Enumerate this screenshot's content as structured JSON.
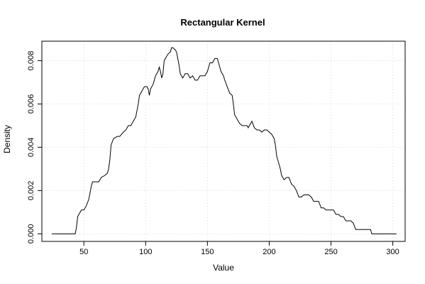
{
  "chart_data": {
    "type": "line",
    "title": "Rectangular Kernel",
    "xlabel": "Value",
    "ylabel": "Density",
    "xlim": [
      16,
      310
    ],
    "ylim": [
      -0.00035,
      0.0089
    ],
    "grid": true,
    "xticks": [
      {
        "value": 50,
        "label": "50"
      },
      {
        "value": 100,
        "label": "100"
      },
      {
        "value": 150,
        "label": "150"
      },
      {
        "value": 200,
        "label": "200"
      },
      {
        "value": 250,
        "label": "250"
      },
      {
        "value": 300,
        "label": "300"
      }
    ],
    "yticks": [
      {
        "value": 0,
        "label": "0.000"
      },
      {
        "value": 0.002,
        "label": "0.002"
      },
      {
        "value": 0.004,
        "label": "0.004"
      },
      {
        "value": 0.006,
        "label": "0.006"
      },
      {
        "value": 0.008,
        "label": "0.008"
      }
    ],
    "series": [
      {
        "x": [
          24,
          43,
          44,
          45,
          46,
          48,
          50,
          52,
          54,
          55,
          56,
          57,
          59,
          62,
          64,
          67,
          69,
          70,
          71,
          72,
          74,
          77,
          79,
          82,
          84,
          86,
          88,
          90,
          92,
          93,
          94,
          95,
          97,
          99,
          101,
          102,
          103,
          104,
          106,
          107,
          108,
          110,
          111,
          112,
          113,
          114,
          115,
          116,
          118,
          120,
          121,
          122,
          124,
          125,
          126,
          127,
          128,
          130,
          132,
          134,
          136,
          138,
          140,
          142,
          144,
          146,
          148,
          150,
          151,
          152,
          154,
          155,
          156,
          158,
          159,
          160,
          161,
          162,
          163,
          164,
          166,
          168,
          170,
          171,
          172,
          174,
          176,
          178,
          180,
          182,
          183,
          184,
          185,
          186,
          188,
          190,
          192,
          194,
          196,
          198,
          200,
          202,
          203,
          204,
          205,
          206,
          208,
          209,
          210,
          211,
          212,
          214,
          216,
          218,
          220,
          222,
          224,
          226,
          228,
          230,
          232,
          234,
          236,
          238,
          240,
          242,
          244,
          246,
          248,
          250,
          252,
          254,
          256,
          258,
          260,
          262,
          264,
          266,
          268,
          270,
          272,
          274,
          276,
          278,
          280,
          282,
          283,
          284,
          286,
          288,
          303
        ],
        "y": [
          0.0,
          0.0,
          0.0003,
          0.0008,
          0.0009,
          0.0011,
          0.0011,
          0.0013,
          0.0016,
          0.0019,
          0.0022,
          0.0024,
          0.0024,
          0.0024,
          0.0026,
          0.0027,
          0.0028,
          0.003,
          0.0034,
          0.0041,
          0.0044,
          0.0045,
          0.0045,
          0.0047,
          0.0048,
          0.005,
          0.005,
          0.0052,
          0.0054,
          0.0057,
          0.006,
          0.0064,
          0.0066,
          0.0068,
          0.0068,
          0.0067,
          0.0064,
          0.0067,
          0.0069,
          0.0071,
          0.0073,
          0.0075,
          0.0077,
          0.0075,
          0.0072,
          0.0074,
          0.008,
          0.0081,
          0.0083,
          0.0084,
          0.0086,
          0.0086,
          0.0085,
          0.0084,
          0.0081,
          0.0078,
          0.0074,
          0.0072,
          0.0074,
          0.0074,
          0.0072,
          0.0073,
          0.0071,
          0.0071,
          0.0073,
          0.0073,
          0.0073,
          0.0075,
          0.0077,
          0.0079,
          0.0079,
          0.008,
          0.0081,
          0.0081,
          0.0079,
          0.0077,
          0.0075,
          0.0074,
          0.0073,
          0.0071,
          0.0068,
          0.0065,
          0.0064,
          0.006,
          0.0055,
          0.0053,
          0.0051,
          0.005,
          0.005,
          0.005,
          0.0049,
          0.005,
          0.0051,
          0.0052,
          0.0049,
          0.0048,
          0.0048,
          0.0047,
          0.0048,
          0.0048,
          0.0047,
          0.0046,
          0.0045,
          0.0044,
          0.0041,
          0.0036,
          0.0032,
          0.003,
          0.0027,
          0.0026,
          0.0025,
          0.0026,
          0.0026,
          0.0023,
          0.0022,
          0.002,
          0.0017,
          0.0017,
          0.0018,
          0.0018,
          0.0018,
          0.0017,
          0.0015,
          0.0015,
          0.0015,
          0.0012,
          0.0012,
          0.0011,
          0.0011,
          0.0011,
          0.0011,
          0.0009,
          0.0009,
          0.0008,
          0.0008,
          0.0006,
          0.0006,
          0.0006,
          0.0005,
          0.0002,
          0.0002,
          0.0002,
          0.0002,
          0.0002,
          0.0002,
          0.0002,
          0.0,
          0.0,
          0.0,
          0.0,
          0.0
        ]
      }
    ]
  }
}
